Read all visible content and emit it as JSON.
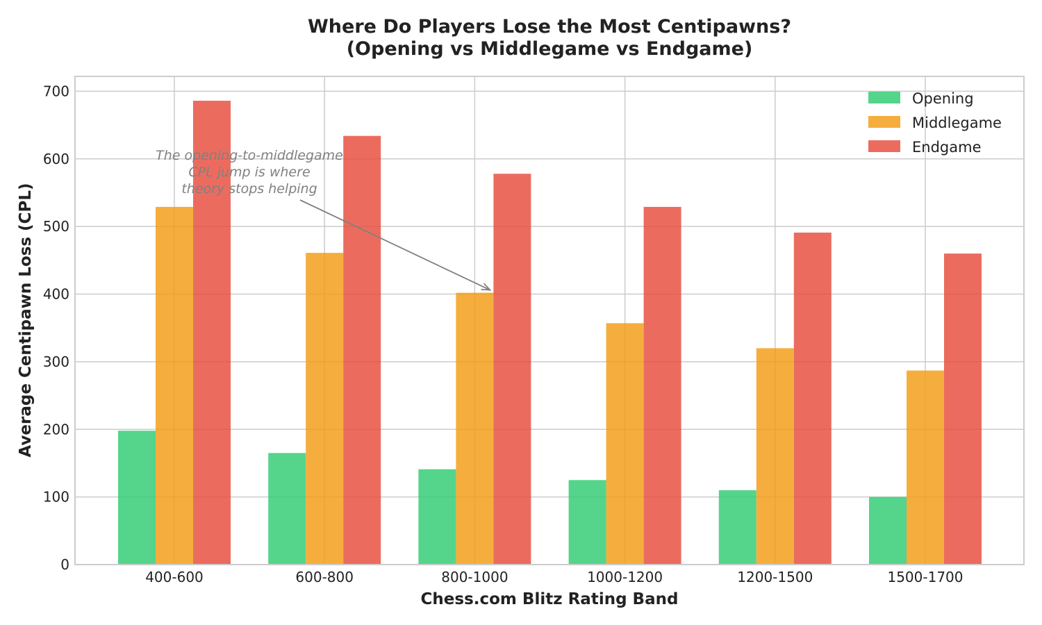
{
  "chart_data": {
    "type": "bar",
    "title_lines": [
      "Where Do Players Lose the Most Centipawns?",
      "(Opening vs Middlegame vs Endgame)"
    ],
    "xlabel": "Chess.com Blitz Rating Band",
    "ylabel": "Average Centipawn Loss (CPL)",
    "categories": [
      "400-600",
      "600-800",
      "800-1000",
      "1000-1200",
      "1200-1500",
      "1500-1700"
    ],
    "series": [
      {
        "name": "Opening",
        "color": "#2ecc71",
        "values": [
          198,
          165,
          141,
          125,
          110,
          100
        ]
      },
      {
        "name": "Middlegame",
        "color": "#f39c12",
        "values": [
          529,
          461,
          402,
          357,
          320,
          287
        ]
      },
      {
        "name": "Endgame",
        "color": "#e74c3c",
        "values": [
          686,
          634,
          578,
          529,
          491,
          460
        ]
      }
    ],
    "ylim": [
      0,
      722
    ],
    "yticks": [
      0,
      100,
      200,
      300,
      400,
      500,
      600,
      700
    ],
    "grid": true,
    "legend": "top-right",
    "annotation": {
      "lines": [
        "The opening-to-middlegame",
        "CPL jump is where",
        "theory stops helping"
      ],
      "target_category": "800-1000",
      "target_series": "Middlegame",
      "target_value": 402
    }
  }
}
